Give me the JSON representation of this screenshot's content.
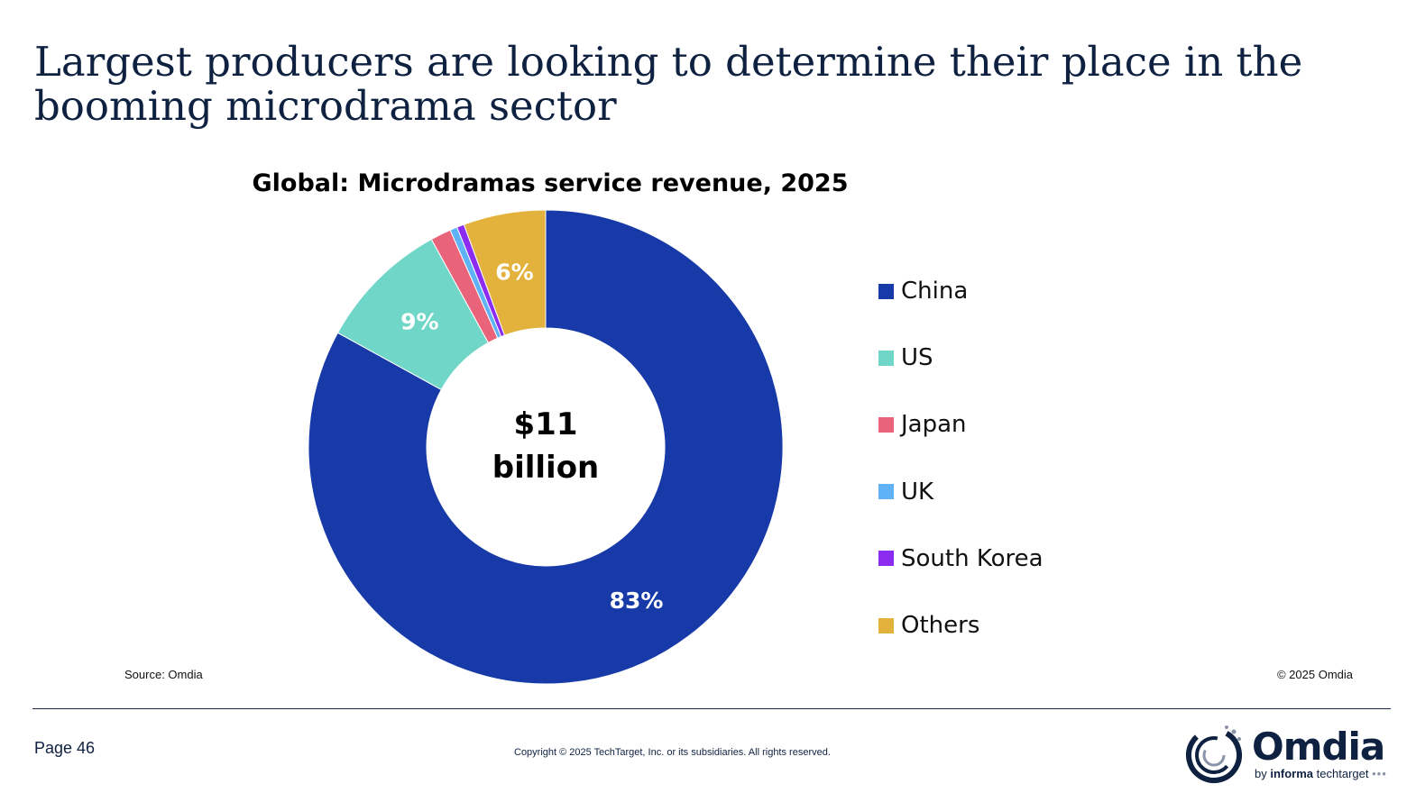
{
  "slide": {
    "title_line1": "Largest producers are looking to determine their place in the",
    "title_line2": "booming microdrama sector",
    "page_label": "Page 46",
    "footer_copyright": "Copyright © 2025 TechTarget, Inc. or its subsidiaries. All rights reserved."
  },
  "chart_data": {
    "type": "pie",
    "title": "Global: Microdramas service revenue, 2025",
    "center_line1": "$11",
    "center_line2": "billion",
    "source": "Source: Omdia",
    "copyright": "© 2025 Omdia",
    "legend_position": "right",
    "slices": [
      {
        "name": "China",
        "value": 83,
        "label": "83%",
        "color": "#173aa8"
      },
      {
        "name": "US",
        "value": 9,
        "label": "9%",
        "color": "#6fd6c8"
      },
      {
        "name": "Japan",
        "value": 1.4,
        "label": "",
        "color": "#e9637b"
      },
      {
        "name": "UK",
        "value": 0.5,
        "label": "",
        "color": "#5fb2f5"
      },
      {
        "name": "South Korea",
        "value": 0.5,
        "label": "",
        "color": "#8b2cf0"
      },
      {
        "name": "Others",
        "value": 5.6,
        "label": "6%",
        "color": "#e3b23c"
      }
    ]
  },
  "logo": {
    "word": "Omdia",
    "tag_prefix": "by",
    "tag_brand": "informa",
    "tag_suffix": "techtarget",
    "ring_color": "#0e2140",
    "accent_color": "#8a94a6"
  }
}
